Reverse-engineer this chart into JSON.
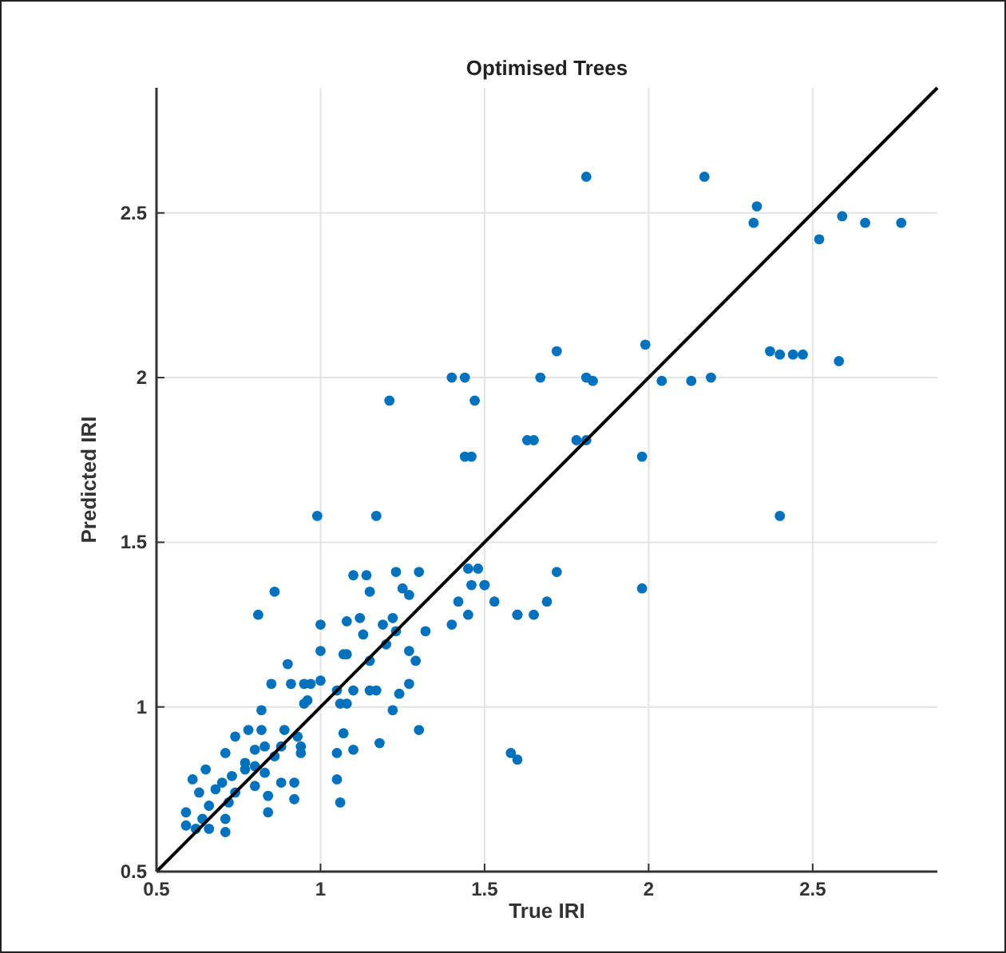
{
  "chart_data": {
    "type": "scatter",
    "title": "Optimised Trees",
    "xlabel": "True IRI",
    "ylabel": "Predicted IRI",
    "xlim": [
      0.5,
      2.88
    ],
    "ylim": [
      0.5,
      2.88
    ],
    "xticks": [
      0.5,
      1,
      1.5,
      2,
      2.5
    ],
    "yticks": [
      0.5,
      1,
      1.5,
      2,
      2.5
    ],
    "grid": true,
    "marker": "circle",
    "series": [
      {
        "color": "#0072bd",
        "x": [
          1.81,
          2.17,
          2.33,
          2.32,
          2.59,
          2.66,
          2.77,
          2.52,
          2.58,
          2.37,
          2.4,
          2.44,
          2.47,
          1.72,
          1.67,
          1.81,
          1.83,
          1.99,
          2.04,
          2.13,
          2.19,
          1.63,
          1.65,
          1.78,
          1.81,
          1.98,
          2.4,
          1.4,
          1.44,
          1.47,
          1.44,
          1.46,
          1.21,
          1.17,
          0.99,
          1.72,
          1.98,
          1.48,
          1.5,
          1.53,
          1.6,
          1.65,
          1.69,
          1.58,
          1.6,
          1.1,
          1.14,
          1.23,
          1.3,
          1.45,
          1.46,
          1.5,
          1.15,
          1.25,
          1.27,
          1.42,
          1.6,
          1.23,
          1.45,
          1.4,
          1.32,
          1.0,
          1.08,
          1.12,
          1.19,
          1.22,
          1.13,
          1.0,
          1.08,
          1.2,
          1.27,
          1.29,
          1.15,
          0.97,
          1.0,
          1.05,
          1.1,
          1.15,
          1.08,
          1.17,
          1.27,
          1.24,
          0.95,
          1.06,
          1.22,
          1.07,
          1.3,
          1.18,
          1.05,
          1.1,
          0.94,
          1.06,
          1.05,
          0.86,
          0.81,
          0.85,
          0.82,
          0.9,
          0.59,
          0.62,
          0.66,
          0.59,
          0.64,
          0.66,
          0.71,
          0.63,
          0.68,
          0.65,
          0.7,
          0.73,
          0.74,
          0.72,
          0.77,
          0.71,
          0.74,
          0.78,
          0.82,
          0.8,
          0.77,
          0.8,
          0.83,
          0.8,
          0.84,
          0.84,
          0.88,
          0.92,
          0.92,
          0.88,
          0.94,
          0.89,
          0.93,
          0.83,
          0.86,
          0.71,
          0.61,
          0.91,
          0.95,
          0.96,
          1.07
        ],
        "values": [
          2.61,
          2.61,
          2.52,
          2.47,
          2.49,
          2.47,
          2.47,
          2.42,
          2.05,
          2.08,
          2.07,
          2.07,
          2.07,
          2.08,
          2.0,
          2.0,
          1.99,
          2.1,
          1.99,
          1.99,
          2.0,
          1.81,
          1.81,
          1.81,
          1.81,
          1.76,
          1.58,
          2.0,
          2.0,
          1.93,
          1.76,
          1.76,
          1.93,
          1.58,
          1.58,
          1.41,
          1.36,
          1.42,
          1.37,
          1.32,
          1.28,
          1.28,
          1.32,
          0.86,
          0.84,
          1.4,
          1.4,
          1.41,
          1.41,
          1.42,
          1.37,
          1.37,
          1.35,
          1.36,
          1.34,
          1.32,
          1.28,
          1.23,
          1.28,
          1.25,
          1.23,
          1.25,
          1.26,
          1.27,
          1.25,
          1.27,
          1.22,
          1.17,
          1.16,
          1.19,
          1.17,
          1.14,
          1.14,
          1.07,
          1.08,
          1.05,
          1.05,
          1.05,
          1.01,
          1.05,
          1.07,
          1.04,
          1.01,
          1.01,
          0.99,
          0.92,
          0.93,
          0.89,
          0.86,
          0.87,
          0.88,
          0.71,
          0.78,
          1.35,
          1.28,
          1.07,
          0.99,
          1.13,
          0.64,
          0.63,
          0.63,
          0.68,
          0.66,
          0.7,
          0.66,
          0.74,
          0.75,
          0.81,
          0.77,
          0.79,
          0.74,
          0.71,
          0.83,
          0.86,
          0.91,
          0.93,
          0.93,
          0.87,
          0.81,
          0.82,
          0.8,
          0.76,
          0.73,
          0.68,
          0.77,
          0.77,
          0.72,
          0.88,
          0.86,
          0.93,
          0.91,
          0.88,
          0.85,
          0.62,
          0.78,
          1.07,
          1.07,
          1.02,
          1.16
        ]
      },
      {
        "type": "line",
        "color": "#000000",
        "marker": "none",
        "x": [
          0.5,
          2.88
        ],
        "values": [
          0.5,
          2.88
        ]
      }
    ]
  }
}
